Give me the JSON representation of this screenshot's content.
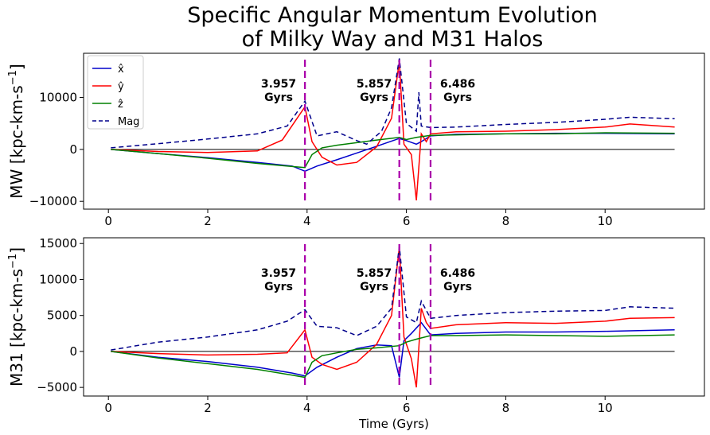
{
  "chart_data": {
    "title_lines": [
      "Specific Angular Momentum Evolution",
      "of Milky Way and M31 Halos"
    ],
    "legend": [
      {
        "key": "x",
        "label": "x̂",
        "color": "#0000cc",
        "dash": false
      },
      {
        "key": "y",
        "label": "ŷ",
        "color": "#ff0000",
        "dash": false
      },
      {
        "key": "z",
        "label": "ẑ",
        "color": "#008000",
        "dash": false
      },
      {
        "key": "mag",
        "label": "Mag",
        "color": "#00008b",
        "dash": true
      }
    ],
    "xlabel": "Time (Gyrs)",
    "colors": {
      "x": "#0000cc",
      "y": "#ff0000",
      "z": "#008000",
      "mag": "#00008b",
      "vline": "#aa00aa",
      "zero": "#000000"
    },
    "annotations": [
      {
        "value": "3.957",
        "unit": "Gyrs",
        "x": 3.957
      },
      {
        "value": "5.857",
        "unit": "Gyrs",
        "x": 5.857
      },
      {
        "value": "6.486",
        "unit": "Gyrs",
        "x": 6.486
      }
    ],
    "panels": [
      {
        "type": "line",
        "ylabel": "MW [kpc-km-s$^{-1}$]",
        "ylabel_text": "MW [kpc-km-s",
        "ylabel_sup": "−1",
        "xlim": [
          -0.5,
          12.0
        ],
        "ylim": [
          -11500,
          18500
        ],
        "xticks": [
          "0",
          "2",
          "4",
          "6",
          "8",
          "10"
        ],
        "yticks": [
          "−10000",
          "0",
          "10000"
        ],
        "ytick_values": [
          -10000,
          0,
          10000
        ],
        "series": {
          "x": [
            [
              0.05,
              0
            ],
            [
              1,
              -800
            ],
            [
              2,
              -1600
            ],
            [
              3,
              -2500
            ],
            [
              3.7,
              -3200
            ],
            [
              3.957,
              -4200
            ],
            [
              4.2,
              -3200
            ],
            [
              4.6,
              -2000
            ],
            [
              5.0,
              -700
            ],
            [
              5.4,
              600
            ],
            [
              5.7,
              1600
            ],
            [
              5.857,
              2100
            ],
            [
              6.0,
              1700
            ],
            [
              6.2,
              1000
            ],
            [
              6.3,
              1500
            ],
            [
              6.486,
              2600
            ],
            [
              7,
              2900
            ],
            [
              8,
              3000
            ],
            [
              9,
              3100
            ],
            [
              10,
              3100
            ],
            [
              11.4,
              3000
            ]
          ],
          "y": [
            [
              0.05,
              0
            ],
            [
              1,
              -400
            ],
            [
              2,
              -600
            ],
            [
              3,
              -300
            ],
            [
              3.5,
              1800
            ],
            [
              3.8,
              6000
            ],
            [
              3.957,
              8200
            ],
            [
              4.1,
              1500
            ],
            [
              4.3,
              -1500
            ],
            [
              4.6,
              -3000
            ],
            [
              5.0,
              -2500
            ],
            [
              5.4,
              500
            ],
            [
              5.7,
              6000
            ],
            [
              5.857,
              17000
            ],
            [
              5.95,
              1000
            ],
            [
              6.1,
              -1000
            ],
            [
              6.2,
              -9800
            ],
            [
              6.3,
              3000
            ],
            [
              6.4,
              1500
            ],
            [
              6.486,
              3000
            ],
            [
              7,
              3400
            ],
            [
              8,
              3500
            ],
            [
              9,
              3800
            ],
            [
              10,
              4300
            ],
            [
              10.5,
              4900
            ],
            [
              11.4,
              4300
            ]
          ],
          "z": [
            [
              0.05,
              0
            ],
            [
              1,
              -800
            ],
            [
              2,
              -1700
            ],
            [
              3,
              -2700
            ],
            [
              3.7,
              -3300
            ],
            [
              3.957,
              -3500
            ],
            [
              4.1,
              -1000
            ],
            [
              4.3,
              300
            ],
            [
              4.6,
              800
            ],
            [
              5.0,
              1300
            ],
            [
              5.4,
              1800
            ],
            [
              5.857,
              2300
            ],
            [
              6.0,
              1900
            ],
            [
              6.2,
              2300
            ],
            [
              6.486,
              2700
            ],
            [
              7,
              2800
            ],
            [
              8,
              3000
            ],
            [
              9,
              3000
            ],
            [
              10,
              3200
            ],
            [
              11.4,
              3100
            ]
          ],
          "mag": [
            [
              0.05,
              300
            ],
            [
              1,
              1100
            ],
            [
              2,
              2000
            ],
            [
              3,
              3000
            ],
            [
              3.6,
              4500
            ],
            [
              3.957,
              9300
            ],
            [
              4.2,
              2600
            ],
            [
              4.6,
              3400
            ],
            [
              5.0,
              1700
            ],
            [
              5.2,
              1000
            ],
            [
              5.5,
              3500
            ],
            [
              5.7,
              8000
            ],
            [
              5.857,
              17500
            ],
            [
              6.0,
              5000
            ],
            [
              6.2,
              3500
            ],
            [
              6.25,
              11000
            ],
            [
              6.3,
              4500
            ],
            [
              6.486,
              4200
            ],
            [
              7,
              4300
            ],
            [
              8,
              4800
            ],
            [
              9,
              5200
            ],
            [
              10,
              5800
            ],
            [
              10.5,
              6200
            ],
            [
              11.4,
              5900
            ]
          ]
        }
      },
      {
        "type": "line",
        "ylabel": "M31 [kpc-km-s$^{-1}$]",
        "ylabel_text": "M31 [kpc-km-s",
        "ylabel_sup": "−1",
        "xlim": [
          -0.5,
          12.0
        ],
        "ylim": [
          -6200,
          15800
        ],
        "xticks": [
          "0",
          "2",
          "4",
          "6",
          "8",
          "10"
        ],
        "yticks": [
          "−5000",
          "0",
          "5000",
          "10000",
          "15000"
        ],
        "ytick_values": [
          -5000,
          0,
          5000,
          10000,
          15000
        ],
        "series": {
          "x": [
            [
              0.05,
              0
            ],
            [
              1,
              -800
            ],
            [
              2,
              -1400
            ],
            [
              3,
              -2200
            ],
            [
              3.7,
              -3000
            ],
            [
              3.957,
              -3400
            ],
            [
              4.2,
              -2200
            ],
            [
              4.6,
              -800
            ],
            [
              5.0,
              400
            ],
            [
              5.4,
              900
            ],
            [
              5.7,
              800
            ],
            [
              5.857,
              -3600
            ],
            [
              5.95,
              1500
            ],
            [
              6.1,
              2500
            ],
            [
              6.3,
              4000
            ],
            [
              6.486,
              2300
            ],
            [
              7,
              2500
            ],
            [
              8,
              2700
            ],
            [
              9,
              2700
            ],
            [
              10,
              2800
            ],
            [
              11.4,
              3000
            ]
          ],
          "y": [
            [
              0.05,
              0
            ],
            [
              1,
              -300
            ],
            [
              2,
              -500
            ],
            [
              3,
              -400
            ],
            [
              3.6,
              -200
            ],
            [
              3.957,
              3000
            ],
            [
              4.1,
              -800
            ],
            [
              4.3,
              -1800
            ],
            [
              4.6,
              -2500
            ],
            [
              5.0,
              -1500
            ],
            [
              5.4,
              1000
            ],
            [
              5.7,
              5000
            ],
            [
              5.857,
              14500
            ],
            [
              5.95,
              2000
            ],
            [
              6.1,
              -1000
            ],
            [
              6.2,
              -5000
            ],
            [
              6.3,
              6000
            ],
            [
              6.4,
              4000
            ],
            [
              6.486,
              3200
            ],
            [
              7,
              3700
            ],
            [
              8,
              4000
            ],
            [
              9,
              3900
            ],
            [
              10,
              4200
            ],
            [
              10.5,
              4600
            ],
            [
              11.4,
              4700
            ]
          ],
          "z": [
            [
              0.05,
              0
            ],
            [
              1,
              -900
            ],
            [
              2,
              -1700
            ],
            [
              3,
              -2500
            ],
            [
              3.7,
              -3300
            ],
            [
              3.957,
              -3600
            ],
            [
              4.1,
              -1500
            ],
            [
              4.3,
              -600
            ],
            [
              4.6,
              -200
            ],
            [
              5.0,
              300
            ],
            [
              5.4,
              500
            ],
            [
              5.857,
              800
            ],
            [
              6.0,
              1300
            ],
            [
              6.2,
              1700
            ],
            [
              6.486,
              2200
            ],
            [
              7,
              2200
            ],
            [
              8,
              2300
            ],
            [
              9,
              2200
            ],
            [
              10,
              2100
            ],
            [
              11.4,
              2300
            ]
          ],
          "mag": [
            [
              0.05,
              200
            ],
            [
              1,
              1300
            ],
            [
              2,
              2000
            ],
            [
              3,
              3000
            ],
            [
              3.6,
              4200
            ],
            [
              3.957,
              5800
            ],
            [
              4.2,
              3500
            ],
            [
              4.6,
              3300
            ],
            [
              5.0,
              2200
            ],
            [
              5.4,
              3500
            ],
            [
              5.7,
              6000
            ],
            [
              5.857,
              14600
            ],
            [
              6.0,
              4800
            ],
            [
              6.2,
              4000
            ],
            [
              6.3,
              7000
            ],
            [
              6.486,
              4600
            ],
            [
              7,
              5000
            ],
            [
              8,
              5400
            ],
            [
              9,
              5600
            ],
            [
              10,
              5700
            ],
            [
              10.5,
              6200
            ],
            [
              11.4,
              6000
            ]
          ]
        }
      }
    ]
  }
}
